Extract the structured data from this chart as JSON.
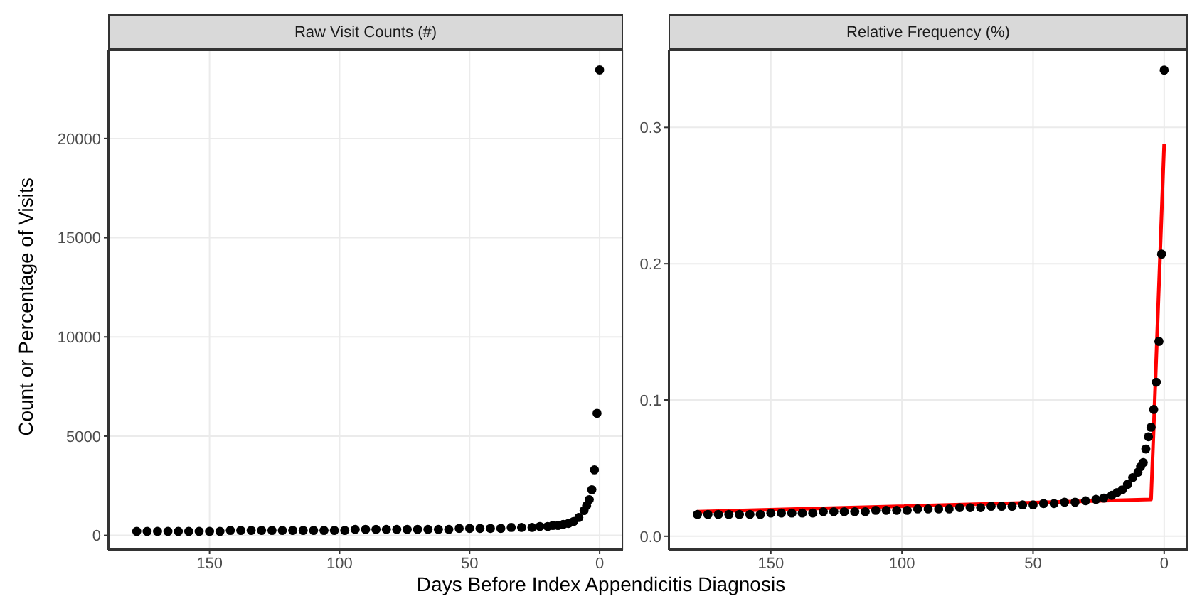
{
  "chart_data": [
    {
      "type": "scatter",
      "title": "Raw Visit Counts (#)",
      "xlabel": "Days Before Index Appendicitis Diagnosis",
      "ylabel": "Count or Percentage of Visits",
      "xlim": [
        189,
        -9
      ],
      "xticks": [
        150,
        100,
        50,
        0
      ],
      "ylim": [
        -730,
        24470
      ],
      "yticks": [
        0,
        5000,
        10000,
        15000,
        20000
      ],
      "grid": true,
      "series": [
        {
          "color": "#000000",
          "marker": "circle",
          "x": [
            0,
            1,
            2,
            3,
            4,
            5,
            6,
            8,
            10,
            12,
            14,
            16,
            18,
            20,
            23,
            26,
            30,
            34,
            38,
            42,
            46,
            50,
            54,
            58,
            62,
            66,
            70,
            74,
            78,
            82,
            86,
            90,
            94,
            98,
            102,
            106,
            110,
            114,
            118,
            122,
            126,
            130,
            134,
            138,
            142,
            146,
            150,
            154,
            158,
            162,
            166,
            170,
            174,
            178
          ],
          "values": [
            23450,
            6150,
            3300,
            2300,
            1800,
            1500,
            1250,
            900,
            700,
            600,
            550,
            500,
            500,
            450,
            450,
            400,
            400,
            400,
            350,
            350,
            350,
            350,
            350,
            300,
            300,
            300,
            300,
            300,
            300,
            300,
            300,
            300,
            300,
            250,
            250,
            250,
            250,
            250,
            250,
            250,
            250,
            250,
            250,
            250,
            250,
            200,
            200,
            200,
            200,
            200,
            200,
            200,
            200,
            200
          ]
        }
      ]
    },
    {
      "type": "scatter",
      "title": "Relative Frequency (%)",
      "xlim": [
        189,
        -9
      ],
      "xticks": [
        150,
        100,
        50,
        0
      ],
      "ylim": [
        -0.01,
        0.357
      ],
      "yticks": [
        {
          "value": 0,
          "label": "0.0"
        },
        0.1,
        0.2,
        0.3
      ],
      "grid": true,
      "series": [
        {
          "color": "#000000",
          "marker": "circle",
          "x": [
            0,
            1,
            2,
            3,
            4,
            5,
            6,
            7,
            8,
            9,
            10,
            12,
            14,
            16,
            18,
            20,
            23,
            26,
            30,
            34,
            38,
            42,
            46,
            50,
            54,
            58,
            62,
            66,
            70,
            74,
            78,
            82,
            86,
            90,
            94,
            98,
            102,
            106,
            110,
            114,
            118,
            122,
            126,
            130,
            134,
            138,
            142,
            146,
            150,
            154,
            158,
            162,
            166,
            170,
            174,
            178
          ],
          "values": [
            0.342,
            0.207,
            0.143,
            0.113,
            0.093,
            0.08,
            0.073,
            0.064,
            0.054,
            0.051,
            0.047,
            0.043,
            0.038,
            0.034,
            0.032,
            0.03,
            0.028,
            0.027,
            0.026,
            0.025,
            0.025,
            0.024,
            0.024,
            0.023,
            0.023,
            0.022,
            0.022,
            0.022,
            0.021,
            0.021,
            0.021,
            0.02,
            0.02,
            0.02,
            0.02,
            0.019,
            0.019,
            0.019,
            0.019,
            0.018,
            0.018,
            0.018,
            0.018,
            0.018,
            0.017,
            0.017,
            0.017,
            0.017,
            0.017,
            0.016,
            0.016,
            0.016,
            0.016,
            0.016,
            0.016,
            0.016
          ]
        },
        {
          "type": "line",
          "color": "#ff0000",
          "x": [
            178,
            5,
            0
          ],
          "values": [
            0.018,
            0.027,
            0.288
          ]
        }
      ]
    }
  ]
}
